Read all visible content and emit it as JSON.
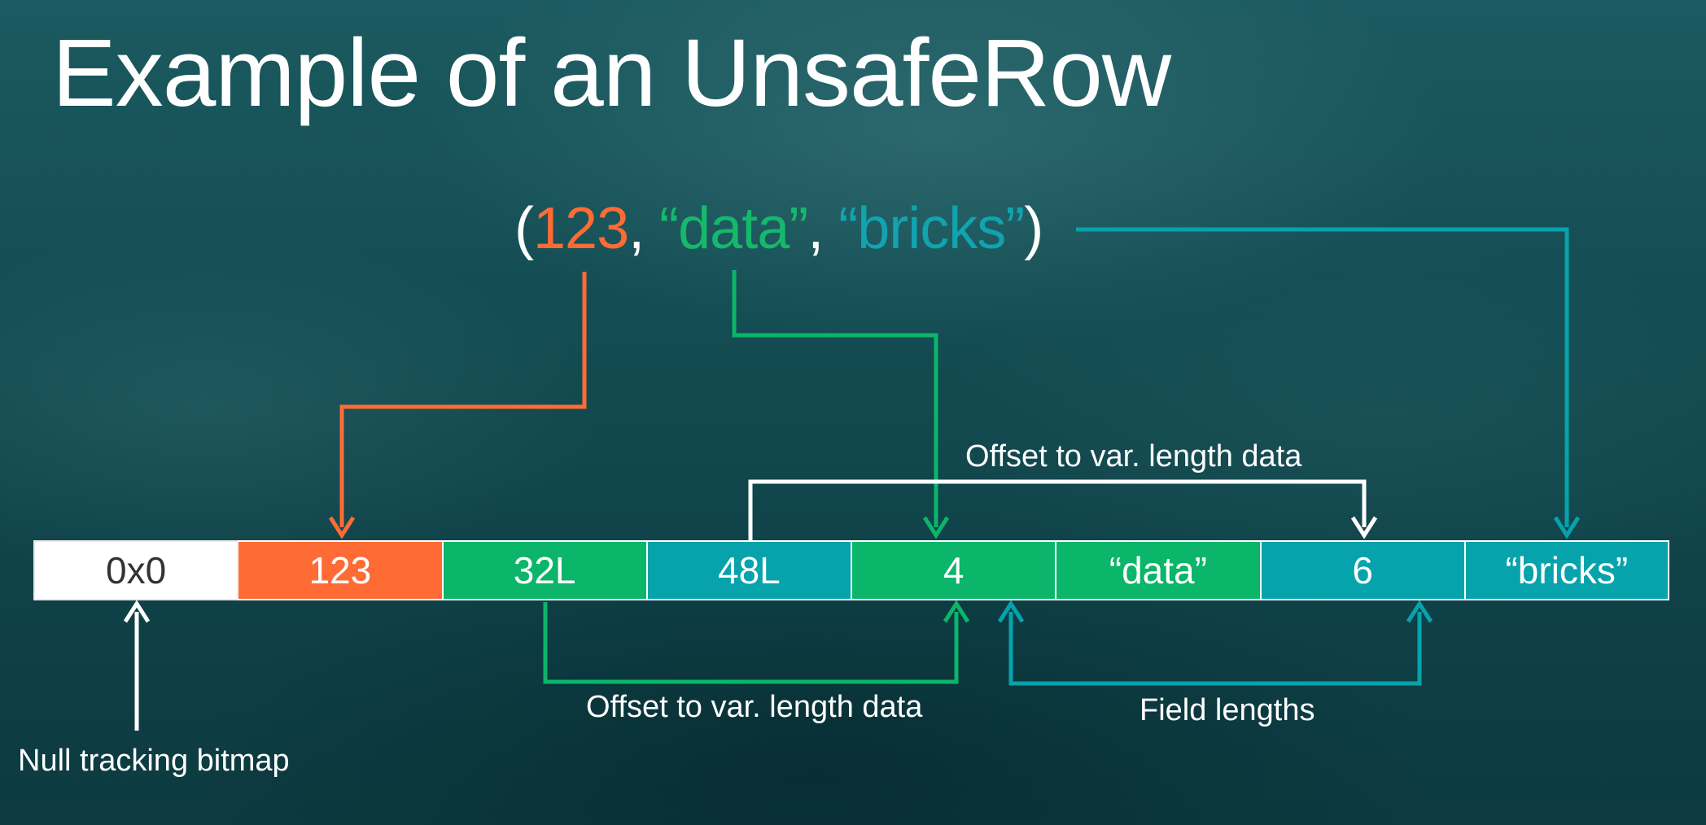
{
  "title": "Example of an UnsafeRow",
  "tuple": {
    "open_paren": "(",
    "value_123": "123",
    "comma_1": ", ",
    "value_data": "“data”",
    "comma_2": ", ",
    "value_bricks": "“bricks”",
    "close_paren": ")"
  },
  "cells": [
    "0x0",
    "123",
    "32L",
    "48L",
    "4",
    "“data”",
    "6",
    "“bricks”"
  ],
  "labels": {
    "offset_top": "Offset to var. length data",
    "offset_bottom": "Offset to var. length data",
    "field_lengths": "Field lengths",
    "null_bitmap": "Null tracking bitmap"
  },
  "colors": {
    "orange": "#ff6b35",
    "green": "#0bb56a",
    "teal": "#06a3ac",
    "white": "#ffffff"
  }
}
